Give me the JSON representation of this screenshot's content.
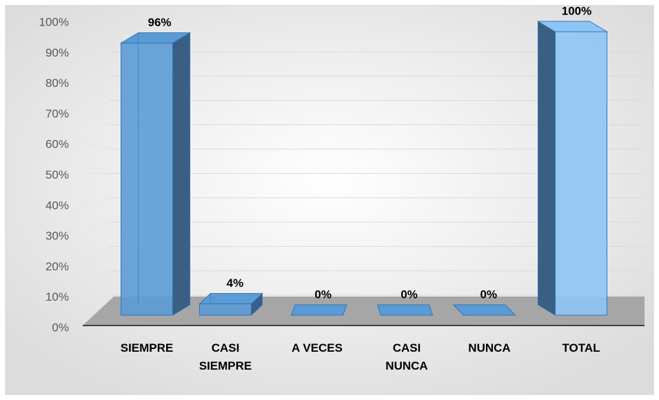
{
  "chart_data": {
    "type": "bar3d",
    "categories": [
      "SIEMPRE",
      "CASI SIEMPRE",
      "A VECES",
      "CASI NUNCA",
      "NUNCA",
      "TOTAL"
    ],
    "values": [
      96,
      4,
      0,
      0,
      0,
      100
    ],
    "value_labels": [
      "96%",
      "4%",
      "0%",
      "0%",
      "0%",
      "100%"
    ],
    "colors": [
      "#5b9bd5",
      "#5b9bd5",
      "#5b9bd5",
      "#5b9bd5",
      "#5b9bd5",
      "#8ec5f5"
    ],
    "ylim": [
      0,
      100
    ],
    "yticks": [
      {
        "value": 0,
        "label": "0%"
      },
      {
        "value": 10,
        "label": "10%"
      },
      {
        "value": 20,
        "label": "20%"
      },
      {
        "value": 30,
        "label": "30%"
      },
      {
        "value": 40,
        "label": "40%"
      },
      {
        "value": 50,
        "label": "50%"
      },
      {
        "value": 60,
        "label": "60%"
      },
      {
        "value": 70,
        "label": "70%"
      },
      {
        "value": 80,
        "label": "80%"
      },
      {
        "value": 90,
        "label": "90%"
      },
      {
        "value": 100,
        "label": "100%"
      }
    ],
    "grid": true
  }
}
